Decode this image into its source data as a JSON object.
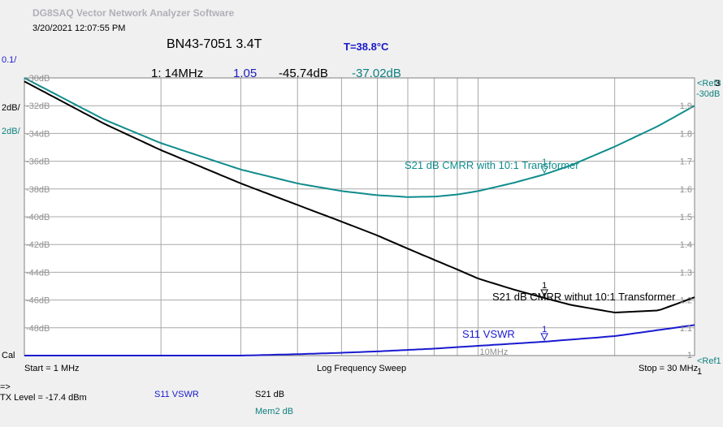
{
  "app_title": "DG8SAQ Vector Network Analyzer Software",
  "timestamp": "3/20/2021   12:07:55 PM",
  "chart_title": "BN43-7051 3.4T",
  "temperature": "T=38.8°C",
  "readout": {
    "marker_freq": "1: 14MHz",
    "vswr": "1.05",
    "s21_a": "-45.74dB",
    "s21_b": "-37.02dB"
  },
  "left_scale": {
    "vswr_div": "0.1/",
    "db_div_a": "2dB/",
    "db_div_b": "2dB/",
    "cal": "Cal"
  },
  "right_scale": {
    "ref_top": "<Ref3",
    "ref_top_db": "-30dB",
    "ref_top_num": "3",
    "ref_bottom": "<Ref1",
    "ref_bottom_num": "1"
  },
  "footer": {
    "start": "Start = 1 MHz",
    "sweep": "Log Frequency Sweep",
    "stop": "Stop = 30 MHz",
    "arrow": "=>",
    "tx_level": "TX Level = -17.4 dBm",
    "legend_s11": "S11   VSWR",
    "legend_s21": "S21    dB",
    "legend_mem2": "Mem2 dB"
  },
  "colors": {
    "s21_live": "#000000",
    "s21_mem": "#108c8c",
    "s11_vswr": "#1a1ad0",
    "plot_bg": "#ffffff",
    "grid": "#a8a8a8"
  },
  "chart_data": {
    "type": "line",
    "x_scale": "log",
    "xlim_mhz": [
      1,
      30
    ],
    "x_tick_label": "10MHz",
    "y_left_db": {
      "ylim": [
        -50,
        -30
      ],
      "ticks": [
        "-30dB",
        "-32dB",
        "-34dB",
        "-36dB",
        "-38dB",
        "-40dB",
        "-42dB",
        "-44dB",
        "-46dB",
        "-48dB"
      ]
    },
    "y_right_vswr": {
      "ylim": [
        1.0,
        2.0
      ],
      "ticks": [
        "1",
        "1.1",
        "1.2",
        "1.3",
        "1.4",
        "1.5",
        "1.6",
        "1.7",
        "1.8",
        "1.9"
      ]
    },
    "series": [
      {
        "name": "S21 dB CMRR with 10:1 Transformer",
        "axis": "db",
        "color": "#108c8c",
        "x": [
          1,
          1.5,
          2,
          3,
          4,
          5,
          6,
          7,
          8,
          9,
          10,
          12,
          14,
          16,
          20,
          25,
          30
        ],
        "y": [
          -30.0,
          -33.0,
          -34.7,
          -36.6,
          -37.6,
          -38.15,
          -38.45,
          -38.58,
          -38.55,
          -38.4,
          -38.15,
          -37.55,
          -36.95,
          -36.3,
          -34.95,
          -33.45,
          -32.0
        ]
      },
      {
        "name": "S21 dB CMRR withut 10:1 Transformer",
        "axis": "db",
        "color": "#000000",
        "x": [
          1,
          1.5,
          2,
          3,
          4,
          5,
          6,
          7,
          8,
          9,
          10,
          12,
          14,
          16,
          20,
          25,
          30
        ],
        "y": [
          -30.25,
          -33.3,
          -35.2,
          -37.6,
          -39.15,
          -40.35,
          -41.35,
          -42.3,
          -43.1,
          -43.8,
          -44.45,
          -45.25,
          -45.85,
          -46.35,
          -46.9,
          -46.75,
          -45.8
        ]
      },
      {
        "name": "S11 VSWR",
        "axis": "vswr",
        "color": "#1a1ad0",
        "x": [
          1,
          2,
          3,
          4,
          5,
          6,
          8,
          10,
          14,
          20,
          30
        ],
        "y": [
          1.0,
          1.0,
          1.0,
          1.005,
          1.01,
          1.015,
          1.025,
          1.035,
          1.05,
          1.07,
          1.11
        ]
      }
    ],
    "markers": [
      {
        "series": "S21 dB CMRR with 10:1 Transformer",
        "label": "1",
        "x": 14
      },
      {
        "series": "S21 dB CMRR withut 10:1 Transformer",
        "label": "1",
        "x": 14
      },
      {
        "series": "S11 VSWR",
        "label": "1",
        "x": 14
      }
    ]
  }
}
